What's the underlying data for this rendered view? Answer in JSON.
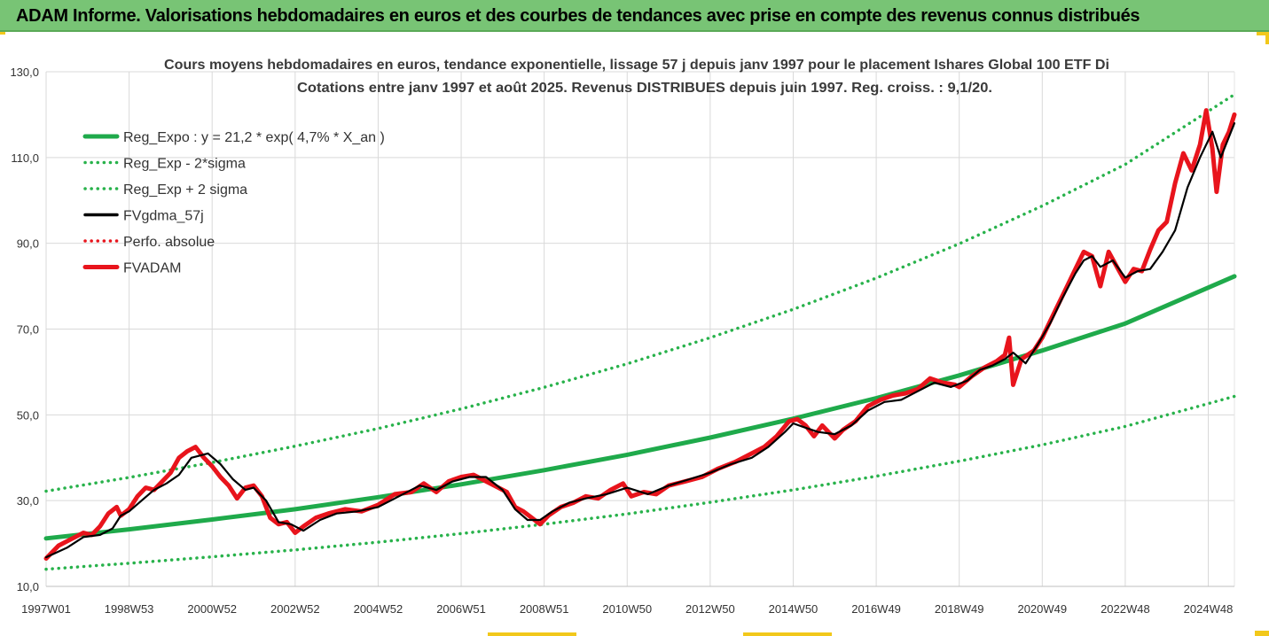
{
  "header": {
    "title": "ADAM Informe. Valorisations hebdomadaires en euros et des courbes de tendances avec prise en compte des revenus connus distribués"
  },
  "colors": {
    "header_bg": "#78c475",
    "regression": "#1faa4b",
    "sigma": "#28b24b",
    "smoothed": "#000000",
    "price": "#e8141c",
    "grid": "#d9d9d9"
  },
  "chart_data": {
    "type": "line",
    "title": "Cours moyens hebdomadaires en euros, tendance exponentielle, lissage 57 j depuis janv 1997 pour le placement Ishares Global 100 ETF Di",
    "subtitle": "Cotations entre janv 1997 et août 2025. Revenus DISTRIBUES depuis juin 1997. Reg. croiss. : 9,1/20.",
    "xlabel": "",
    "ylabel": "",
    "ylim": [
      10,
      130
    ],
    "yticks": [
      "10,0",
      "30,0",
      "50,0",
      "70,0",
      "90,0",
      "110,0",
      "130,0"
    ],
    "xlim": [
      1997.0,
      2025.63
    ],
    "xticks": [
      {
        "x": 1997.0,
        "label": "1997W01"
      },
      {
        "x": 1999.0,
        "label": "1998W53"
      },
      {
        "x": 2001.0,
        "label": "2000W52"
      },
      {
        "x": 2003.0,
        "label": "2002W52"
      },
      {
        "x": 2005.0,
        "label": "2004W52"
      },
      {
        "x": 2007.0,
        "label": "2006W51"
      },
      {
        "x": 2009.0,
        "label": "2008W51"
      },
      {
        "x": 2011.0,
        "label": "2010W50"
      },
      {
        "x": 2013.0,
        "label": "2012W50"
      },
      {
        "x": 2015.0,
        "label": "2014W50"
      },
      {
        "x": 2017.0,
        "label": "2016W49"
      },
      {
        "x": 2019.0,
        "label": "2018W49"
      },
      {
        "x": 2021.0,
        "label": "2020W49"
      },
      {
        "x": 2023.0,
        "label": "2022W48"
      },
      {
        "x": 2025.0,
        "label": "2024W48"
      }
    ],
    "grid": true,
    "legend_position": "top-left",
    "series": [
      {
        "name": "Reg_Expo : y = 21,2 * exp( 4,7% *  X_an )",
        "style": "solid-thick",
        "color": "#1faa4b",
        "x": [
          1997.0,
          1999.0,
          2001.0,
          2003.0,
          2005.0,
          2007.0,
          2009.0,
          2011.0,
          2013.0,
          2015.0,
          2017.0,
          2019.0,
          2021.0,
          2023.0,
          2025.63
        ],
        "values": [
          21.2,
          23.3,
          25.6,
          28.0,
          30.8,
          33.8,
          37.1,
          40.7,
          44.7,
          49.1,
          53.9,
          59.2,
          65.0,
          71.3,
          82.3
        ]
      },
      {
        "name": "Reg_Exp - 2*sigma",
        "style": "dotted",
        "color": "#28b24b",
        "x": [
          1997.0,
          1999.0,
          2001.0,
          2003.0,
          2005.0,
          2007.0,
          2009.0,
          2011.0,
          2013.0,
          2015.0,
          2017.0,
          2019.0,
          2021.0,
          2023.0,
          2025.63
        ],
        "values": [
          14.0,
          15.4,
          16.9,
          18.5,
          20.3,
          22.3,
          24.5,
          26.9,
          29.6,
          32.5,
          35.7,
          39.2,
          43.0,
          47.3,
          54.3
        ]
      },
      {
        "name": "Reg_Exp + 2 sigma",
        "style": "dotted",
        "color": "#28b24b",
        "x": [
          1997.0,
          1999.0,
          2001.0,
          2003.0,
          2005.0,
          2007.0,
          2009.0,
          2011.0,
          2013.0,
          2015.0,
          2017.0,
          2019.0,
          2021.0,
          2023.0,
          2025.63
        ],
        "values": [
          32.2,
          35.4,
          38.9,
          42.7,
          46.8,
          51.4,
          56.4,
          61.9,
          68.0,
          74.6,
          81.9,
          89.9,
          98.7,
          108.4,
          124.7
        ]
      },
      {
        "name": "FVgdma_57j",
        "style": "solid",
        "color": "#000000",
        "x": [
          1997.0,
          1997.5,
          1997.9,
          1998.3,
          1998.6,
          1998.8,
          1999.0,
          1999.3,
          1999.6,
          1999.9,
          2000.2,
          2000.5,
          2000.9,
          2001.2,
          2001.5,
          2001.8,
          2002.0,
          2002.3,
          2002.6,
          2002.9,
          2003.2,
          2003.6,
          2004.0,
          2004.5,
          2005.0,
          2005.5,
          2006.0,
          2006.4,
          2006.8,
          2007.2,
          2007.6,
          2008.0,
          2008.3,
          2008.6,
          2008.9,
          2009.2,
          2009.6,
          2010.0,
          2010.5,
          2011.0,
          2011.5,
          2012.0,
          2012.5,
          2013.0,
          2013.5,
          2014.0,
          2014.4,
          2014.8,
          2015.0,
          2015.3,
          2015.6,
          2016.0,
          2016.4,
          2016.8,
          2017.2,
          2017.6,
          2018.0,
          2018.4,
          2018.8,
          2019.2,
          2019.5,
          2019.8,
          2020.1,
          2020.3,
          2020.6,
          2020.9,
          2021.2,
          2021.5,
          2021.8,
          2022.0,
          2022.2,
          2022.4,
          2022.7,
          2023.0,
          2023.3,
          2023.6,
          2023.9,
          2024.2,
          2024.5,
          2024.8,
          2025.1,
          2025.3,
          2025.63
        ],
        "values": [
          16.8,
          19.0,
          21.5,
          22.0,
          23.5,
          26.5,
          27.5,
          30.0,
          32.5,
          34.0,
          36.0,
          40.0,
          41.0,
          38.5,
          35.0,
          32.5,
          33.0,
          30.0,
          25.0,
          24.5,
          23.0,
          25.5,
          27.0,
          27.5,
          28.5,
          31.0,
          33.5,
          32.5,
          34.5,
          35.5,
          35.5,
          32.5,
          28.0,
          25.5,
          25.5,
          27.5,
          29.5,
          30.5,
          31.5,
          33.0,
          31.5,
          33.5,
          35.0,
          36.5,
          38.5,
          40.0,
          42.5,
          46.0,
          48.0,
          47.0,
          46.0,
          45.5,
          47.5,
          51.0,
          53.0,
          53.5,
          55.5,
          57.5,
          56.5,
          58.0,
          60.5,
          61.5,
          63.0,
          64.5,
          62.0,
          66.5,
          71.5,
          77.5,
          83.0,
          86.0,
          87.0,
          84.5,
          86.0,
          82.0,
          83.5,
          84.0,
          88.0,
          93.0,
          103.0,
          110.0,
          116.0,
          110.0,
          118.0
        ]
      },
      {
        "name": "Perfo. absolue",
        "style": "dotted",
        "color": "#e8141c",
        "x": [],
        "values": []
      },
      {
        "name": "FVADAM",
        "style": "solid-thick",
        "color": "#e8141c",
        "x": [
          1997.0,
          1997.3,
          1997.6,
          1997.9,
          1998.1,
          1998.3,
          1998.5,
          1998.7,
          1998.8,
          1999.0,
          1999.2,
          1999.4,
          1999.6,
          1999.8,
          2000.0,
          2000.2,
          2000.4,
          2000.6,
          2000.8,
          2001.0,
          2001.2,
          2001.4,
          2001.6,
          2001.8,
          2002.0,
          2002.2,
          2002.4,
          2002.6,
          2002.8,
          2003.0,
          2003.2,
          2003.5,
          2003.8,
          2004.2,
          2004.6,
          2005.0,
          2005.4,
          2005.8,
          2006.1,
          2006.4,
          2006.7,
          2007.0,
          2007.3,
          2007.6,
          2007.9,
          2008.1,
          2008.3,
          2008.5,
          2008.7,
          2008.9,
          2009.1,
          2009.4,
          2009.7,
          2010.0,
          2010.3,
          2010.6,
          2010.9,
          2011.1,
          2011.4,
          2011.7,
          2012.0,
          2012.4,
          2012.8,
          2013.2,
          2013.6,
          2014.0,
          2014.3,
          2014.6,
          2014.9,
          2015.1,
          2015.3,
          2015.5,
          2015.7,
          2016.0,
          2016.2,
          2016.5,
          2016.8,
          2017.1,
          2017.4,
          2017.7,
          2018.0,
          2018.3,
          2018.6,
          2018.9,
          2019.0,
          2019.3,
          2019.6,
          2019.9,
          2020.1,
          2020.2,
          2020.3,
          2020.5,
          2020.8,
          2021.0,
          2021.3,
          2021.6,
          2021.8,
          2022.0,
          2022.2,
          2022.4,
          2022.6,
          2022.8,
          2023.0,
          2023.2,
          2023.4,
          2023.6,
          2023.8,
          2024.0,
          2024.2,
          2024.4,
          2024.6,
          2024.8,
          2024.95,
          2025.1,
          2025.2,
          2025.35,
          2025.5,
          2025.63
        ],
        "values": [
          16.5,
          19.5,
          21.0,
          22.5,
          22.0,
          24.0,
          27.0,
          28.5,
          26.5,
          28.0,
          31.0,
          33.0,
          32.5,
          34.5,
          36.5,
          40.0,
          41.5,
          42.5,
          40.0,
          38.0,
          35.5,
          33.5,
          30.5,
          33.0,
          33.5,
          31.0,
          26.0,
          24.5,
          25.0,
          22.5,
          24.0,
          26.0,
          27.0,
          28.0,
          27.5,
          29.0,
          31.5,
          32.0,
          34.0,
          32.0,
          34.5,
          35.5,
          36.0,
          34.5,
          33.0,
          32.0,
          28.5,
          27.5,
          26.0,
          24.5,
          26.5,
          28.5,
          29.5,
          31.0,
          30.5,
          32.5,
          34.0,
          31.0,
          32.0,
          31.5,
          33.5,
          34.5,
          35.5,
          37.5,
          39.0,
          41.0,
          42.5,
          45.0,
          48.5,
          49.0,
          47.5,
          45.0,
          47.5,
          44.5,
          46.5,
          48.5,
          52.0,
          53.5,
          54.5,
          55.0,
          56.0,
          58.5,
          57.5,
          57.0,
          56.5,
          59.0,
          61.0,
          62.5,
          64.0,
          68.0,
          57.0,
          63.0,
          65.0,
          68.0,
          74.0,
          80.0,
          84.0,
          88.0,
          87.0,
          80.0,
          88.0,
          84.5,
          81.0,
          84.0,
          83.5,
          88.5,
          93.0,
          95.0,
          104.0,
          111.0,
          107.0,
          113.0,
          121.0,
          112.0,
          102.0,
          113.0,
          116.0,
          120.0
        ]
      }
    ]
  }
}
